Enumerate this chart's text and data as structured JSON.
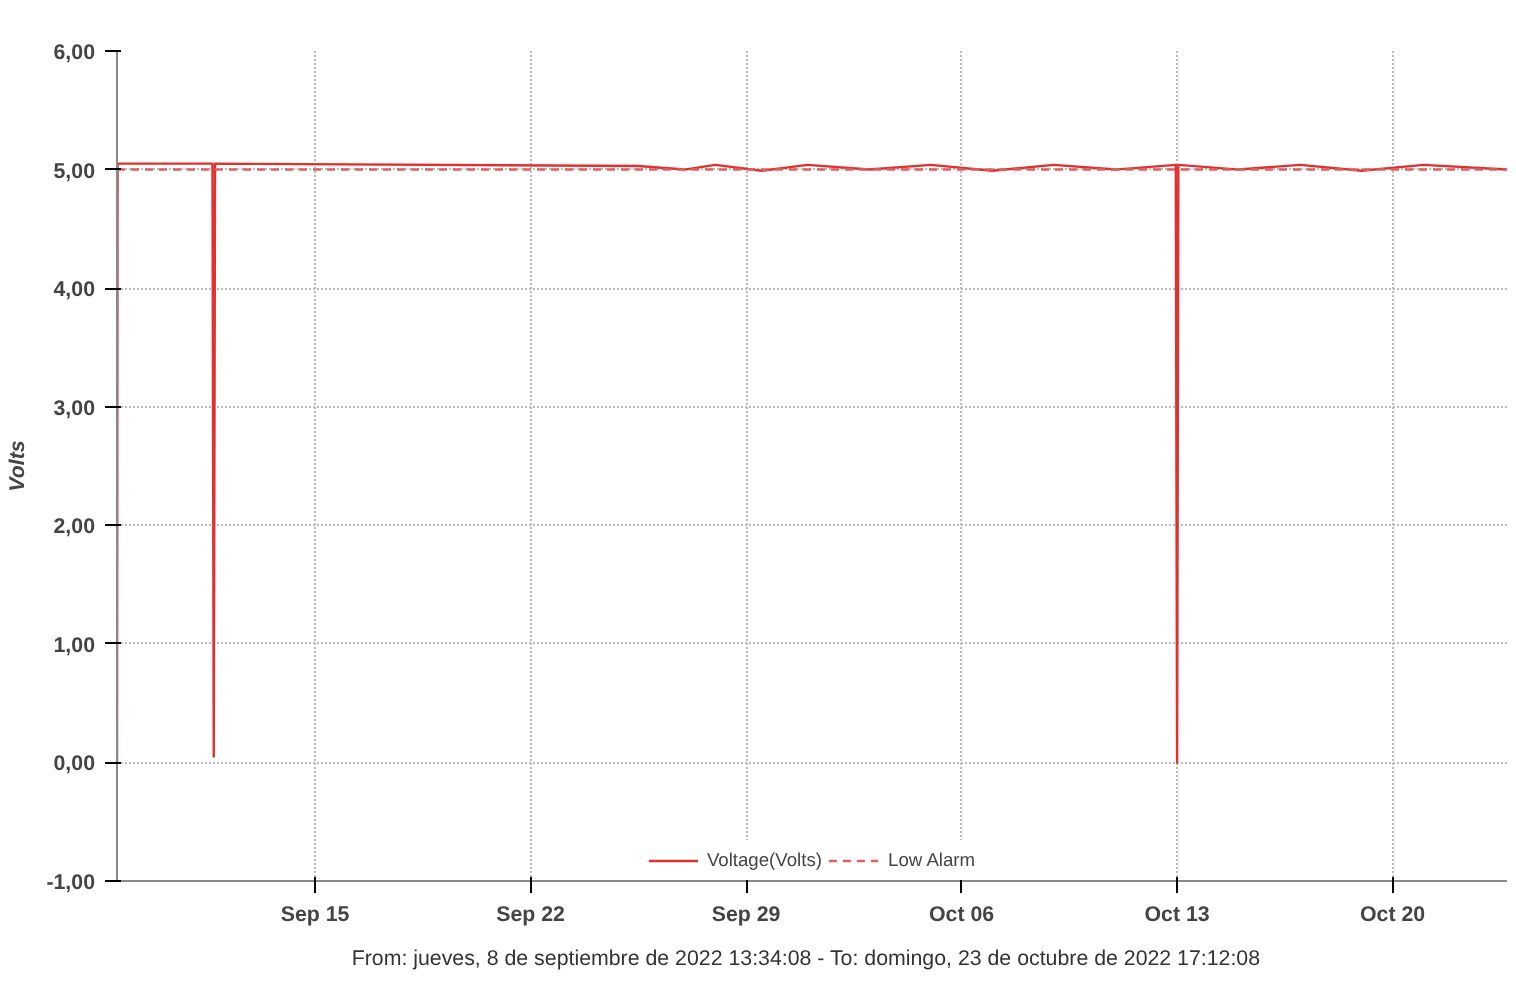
{
  "chart_data": {
    "type": "line",
    "ylabel": "Volts",
    "xlim": [
      "2022-09-08T13:34",
      "2022-10-23T17:12"
    ],
    "xticks": [
      {
        "value": "2022-09-15",
        "label": "Sep 15"
      },
      {
        "value": "2022-09-22",
        "label": "Sep 22"
      },
      {
        "value": "2022-09-29",
        "label": "Sep 29"
      },
      {
        "value": "2022-10-06",
        "label": "Oct 06"
      },
      {
        "value": "2022-10-13",
        "label": "Oct 13"
      },
      {
        "value": "2022-10-20",
        "label": "Oct 20"
      }
    ],
    "ylim": [
      -1,
      6
    ],
    "yticks": [
      {
        "value": -1,
        "label": "-1,00"
      },
      {
        "value": 0,
        "label": "0,00"
      },
      {
        "value": 1,
        "label": "1,00"
      },
      {
        "value": 2,
        "label": "2,00"
      },
      {
        "value": 3,
        "label": "3,00"
      },
      {
        "value": 4,
        "label": "4,00"
      },
      {
        "value": 5,
        "label": "5,00"
      },
      {
        "value": 6,
        "label": "6,00"
      }
    ],
    "grid": true,
    "legend": "bottom",
    "series": [
      {
        "name": "Voltage(Volts)",
        "color": "#e03030",
        "line_style": "solid",
        "x": [
          "2022-09-08T13:34",
          "2022-09-08T14:00",
          "2022-09-11T16:00",
          "2022-09-11T17:00",
          "2022-09-11T18:00",
          "2022-09-25T12:00",
          "2022-09-27T00:00",
          "2022-09-28T00:00",
          "2022-09-29T12:00",
          "2022-10-01T00:00",
          "2022-10-03T00:00",
          "2022-10-05T00:00",
          "2022-10-07T00:00",
          "2022-10-09T00:00",
          "2022-10-11T00:00",
          "2022-10-12T23:00",
          "2022-10-13T00:00",
          "2022-10-13T01:00",
          "2022-10-15T00:00",
          "2022-10-17T00:00",
          "2022-10-19T00:00",
          "2022-10-21T00:00",
          "2022-10-23T17:12"
        ],
        "values": [
          0.0,
          5.05,
          5.05,
          0.05,
          5.05,
          5.03,
          5.0,
          5.04,
          4.99,
          5.04,
          5.0,
          5.04,
          4.99,
          5.04,
          5.0,
          5.04,
          0.0,
          5.04,
          5.0,
          5.04,
          4.99,
          5.04,
          5.0
        ]
      },
      {
        "name": "Low Alarm",
        "color": "#e06060",
        "line_style": "dashed",
        "x": [
          "2022-09-08T13:34",
          "2022-10-23T17:12"
        ],
        "values": [
          5.0,
          5.0
        ]
      }
    ],
    "annotations": [
      "From: jueves, 8 de septiembre de 2022 13:34:08  -  To: domingo, 23 de octubre de 2022 17:12:08"
    ]
  }
}
